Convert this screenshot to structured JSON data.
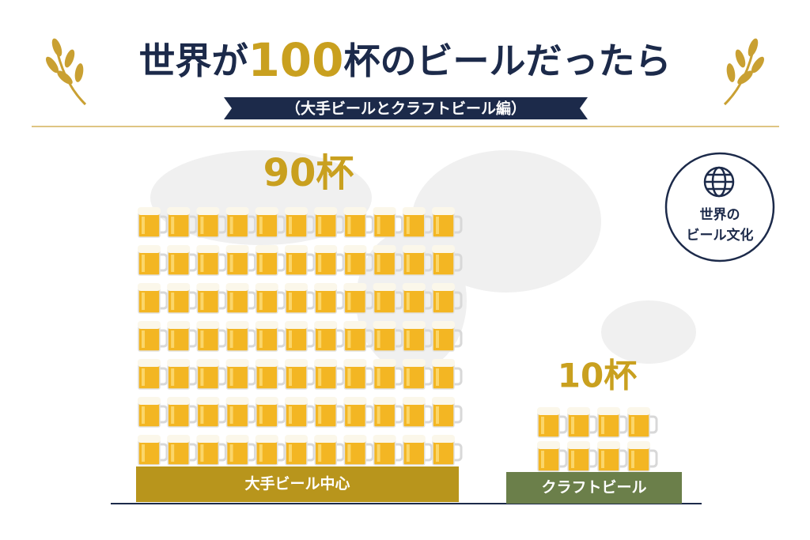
{
  "chart_data": {
    "type": "pictograph",
    "title": "世界が100杯のビールだったら",
    "subtitle": "（大手ビールとクラフトビール編）",
    "badge": [
      "世界の",
      "ビール文化"
    ],
    "categories": [
      "大手ビール中心",
      "クラフトビール"
    ],
    "values": [
      90,
      10
    ],
    "value_labels": [
      "90杯",
      "10杯"
    ],
    "colors": [
      "#b8951c",
      "#6b7f4a"
    ]
  }
}
